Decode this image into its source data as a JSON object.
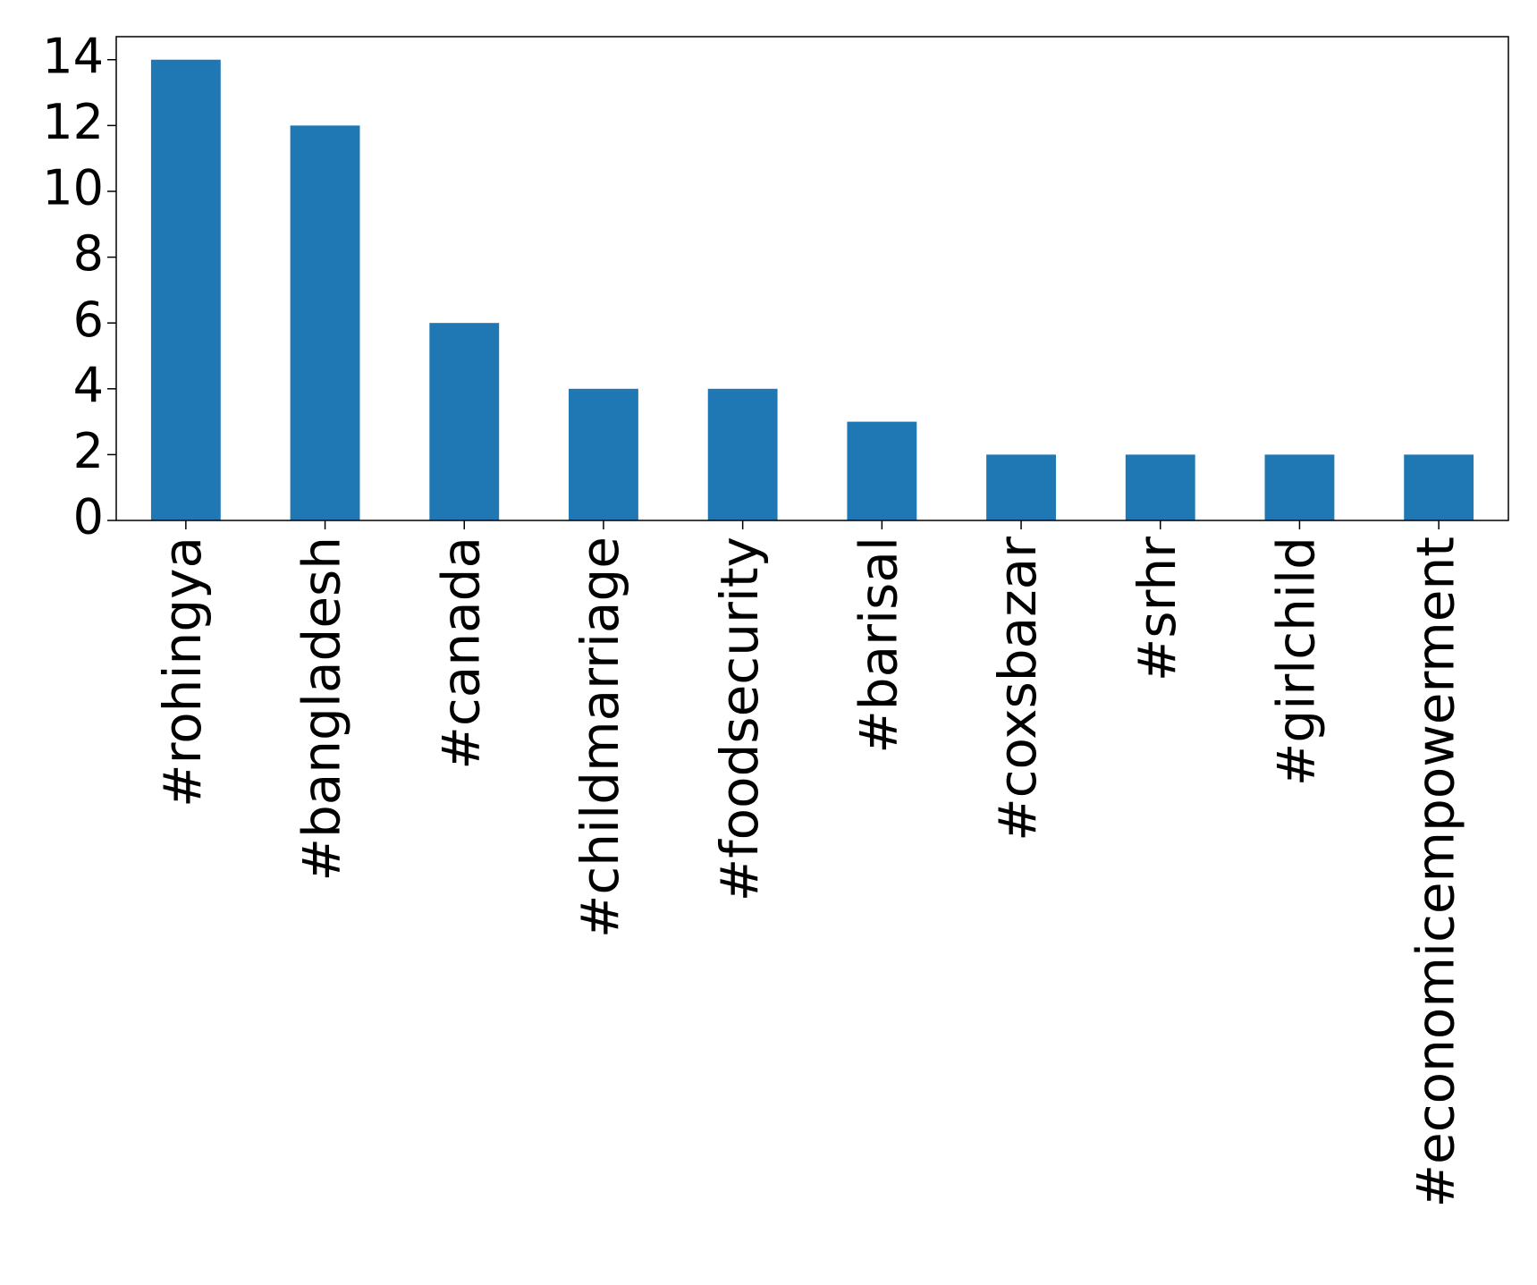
{
  "chart_data": {
    "type": "bar",
    "categories": [
      "#rohingya",
      "#bangladesh",
      "#canada",
      "#childmarriage",
      "#foodsecurity",
      "#barisal",
      "#coxsbazar",
      "#srhr",
      "#girlchild",
      "#economicempowerment"
    ],
    "values": [
      14,
      12,
      6,
      4,
      4,
      3,
      2,
      2,
      2,
      2
    ],
    "color": "#1f77b4",
    "ylim": [
      0,
      14.7
    ],
    "yticks": [
      0,
      2,
      4,
      6,
      8,
      10,
      12,
      14
    ],
    "grid": false
  }
}
